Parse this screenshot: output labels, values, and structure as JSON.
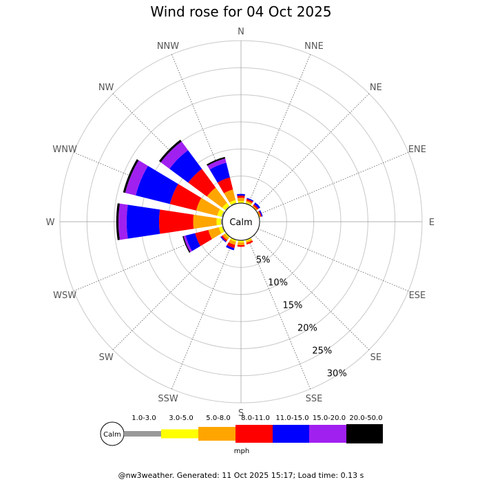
{
  "chart_data": {
    "type": "wind-rose",
    "title": "Wind rose for 04 Oct 2025",
    "directions": [
      "N",
      "NNE",
      "NE",
      "ENE",
      "E",
      "ESE",
      "SE",
      "SSE",
      "S",
      "SSW",
      "SW",
      "WSW",
      "W",
      "WNW",
      "NW",
      "NNW"
    ],
    "radial_ticks": [
      "5%",
      "10%",
      "15%",
      "20%",
      "25%",
      "30%"
    ],
    "radial_max_percent": 30,
    "calm_label": "Calm",
    "units": "mph",
    "speed_bins": [
      {
        "label": "1.0-3.0",
        "color": "#999999"
      },
      {
        "label": "3.0-5.0",
        "color": "#ffff00"
      },
      {
        "label": "5.0-8.0",
        "color": "#ffa500"
      },
      {
        "label": "8.0-11.0",
        "color": "#ff0000"
      },
      {
        "label": "11.0-15.0",
        "color": "#0000ff"
      },
      {
        "label": "15.0-20.0",
        "color": "#a020f0"
      },
      {
        "label": "20.0-50.0",
        "color": "#000000"
      }
    ],
    "series_percent_by_direction": {
      "N": [
        0.1,
        0.3,
        0.6,
        0.4,
        0.3,
        0,
        0
      ],
      "NNE": [
        0.1,
        0.2,
        0.3,
        0.3,
        0.2,
        0,
        0
      ],
      "NE": [
        0,
        0.1,
        0.2,
        0.3,
        0.4,
        0,
        0
      ],
      "ENE": [
        0,
        0.1,
        0.2,
        0.2,
        0.2,
        0,
        0
      ],
      "E": [
        0,
        0,
        0,
        0,
        0,
        0,
        0
      ],
      "ESE": [
        0,
        0,
        0,
        0,
        0,
        0,
        0
      ],
      "SE": [
        0,
        0,
        0,
        0,
        0,
        0,
        0
      ],
      "SSE": [
        0.1,
        0.2,
        0.3,
        0.3,
        0,
        0,
        0
      ],
      "S": [
        0.1,
        0.3,
        0.5,
        0.3,
        0,
        0,
        0
      ],
      "SSW": [
        0.1,
        0.3,
        0.6,
        0.6,
        0.4,
        0,
        0
      ],
      "SW": [
        0.1,
        0.2,
        0.5,
        0.3,
        0.2,
        0,
        0
      ],
      "WSW": [
        0.2,
        0.6,
        2.0,
        2.5,
        1.8,
        0.4,
        0.2
      ],
      "W": [
        0.3,
        0.8,
        4.3,
        6.3,
        6.0,
        1.5,
        0.4
      ],
      "WNW": [
        0.3,
        0.8,
        4.0,
        5.0,
        6.5,
        2.0,
        0.4
      ],
      "NW": [
        0.2,
        0.7,
        3.5,
        4.3,
        4.3,
        2.0,
        0.4
      ],
      "NNW": [
        0.2,
        0.5,
        2.0,
        2.3,
        2.8,
        0.8,
        0.3
      ]
    }
  },
  "footer": {
    "text": "@nw3weather. Generated: 11 Oct 2025 15:17; Load time: 0.13 s"
  }
}
